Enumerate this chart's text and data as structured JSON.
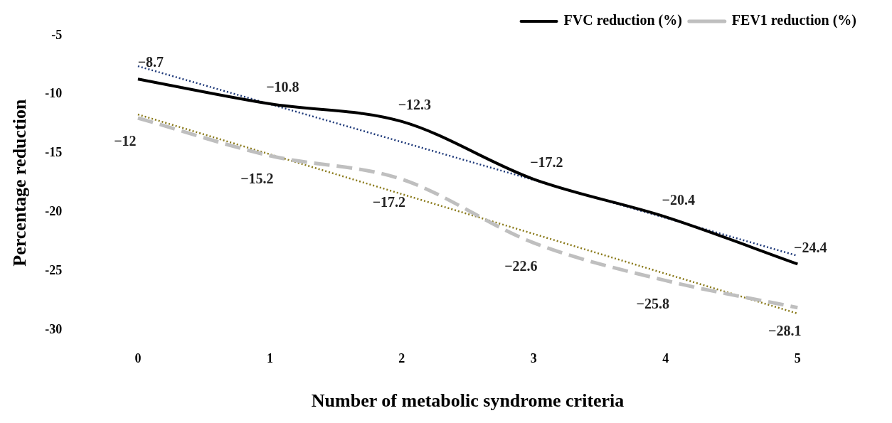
{
  "chart_data": {
    "type": "line",
    "xlabel": "Number of metabolic syndrome criteria",
    "ylabel": "Percentage reduction",
    "categories": [
      "0",
      "1",
      "2",
      "3",
      "4",
      "5"
    ],
    "series": [
      {
        "name": "FVC reduction (%)",
        "color": "#000000",
        "values": [
          -8.7,
          -10.8,
          -12.3,
          -17.2,
          -20.4,
          -24.4
        ],
        "line_style": "solid"
      },
      {
        "name": "FEV1 reduction (%)",
        "color": "#bfbfbf",
        "values": [
          -12,
          -15.2,
          -17.2,
          -22.6,
          -25.8,
          -28.1
        ],
        "line_style": "dashed"
      },
      {
        "type": "line",
        "color": "#1f3a7a",
        "x": [
          "0",
          "5"
        ],
        "values": [
          -7.6,
          -23.7
        ],
        "line_style": "dotted",
        "data_labels": false
      },
      {
        "type": "line",
        "color": "#8a7a1a",
        "x": [
          "0",
          "5"
        ],
        "values": [
          -11.7,
          -28.6
        ],
        "line_style": "dotted",
        "data_labels": false
      }
    ],
    "ylim": [
      -30,
      -5
    ],
    "yticks": [
      -5,
      -10,
      -15,
      -20,
      -25,
      -30
    ],
    "grid": false,
    "legend": "top right",
    "marker": "none",
    "data_labels": true
  }
}
